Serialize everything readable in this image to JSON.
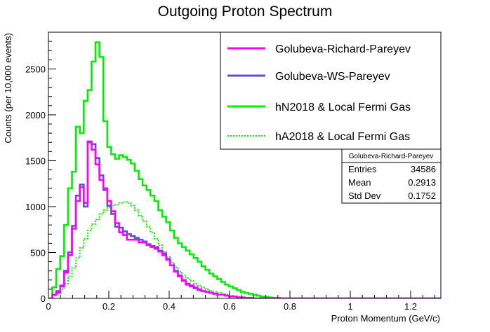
{
  "chart_data": {
    "type": "histogram-step",
    "title": "Outgoing Proton Spectrum",
    "xlabel": "Proton Momentum (GeV/c)",
    "ylabel": "Counts (per 10,000 events)",
    "xlim": [
      0,
      1.3
    ],
    "ylim": [
      0,
      2900
    ],
    "x_ticks": [
      0,
      0.2,
      0.4,
      0.6,
      0.8,
      1,
      1.2
    ],
    "x_tick_labels": [
      "0",
      "0.2",
      "0.4",
      "0.6",
      "0.8",
      "1",
      "1.2"
    ],
    "y_ticks": [
      0,
      500,
      1000,
      1500,
      2000,
      2500
    ],
    "y_tick_labels": [
      "0",
      "500",
      "1000",
      "1500",
      "2000",
      "2500"
    ],
    "bin_width": 0.013,
    "legend_position": "top-right",
    "series": [
      {
        "name": "Golubeva-Richard-Pareyev",
        "color": "#ff00ff",
        "style": "solid",
        "values": [
          0,
          40,
          60,
          140,
          280,
          470,
          760,
          1060,
          1210,
          1040,
          1700,
          1620,
          1460,
          1290,
          1200,
          1060,
          950,
          820,
          720,
          690,
          640,
          640,
          640,
          610,
          610,
          580,
          560,
          540,
          510,
          470,
          420,
          360,
          290,
          240,
          190,
          150,
          140,
          120,
          100,
          80,
          70,
          60,
          50,
          40,
          40,
          30,
          20,
          20,
          10,
          10,
          5,
          5,
          0,
          0,
          0,
          0,
          0,
          0,
          0,
          0,
          0,
          0,
          0,
          0,
          0,
          0,
          0,
          0,
          0,
          0,
          0,
          0,
          0,
          0,
          0,
          0,
          0,
          0,
          0,
          0,
          0,
          0,
          0,
          0,
          0,
          0,
          0,
          0,
          0,
          0,
          0,
          0,
          0,
          0,
          0,
          0,
          0,
          0,
          0,
          0
        ]
      },
      {
        "name": "Golubeva-WS-Pareyev",
        "color": "#5b4fd6",
        "style": "solid",
        "values": [
          0,
          40,
          80,
          130,
          300,
          500,
          790,
          1120,
          1240,
          1000,
          1710,
          1680,
          1530,
          1340,
          1180,
          1010,
          920,
          780,
          770,
          730,
          700,
          680,
          660,
          640,
          620,
          590,
          570,
          560,
          520,
          490,
          430,
          360,
          300,
          250,
          200,
          160,
          130,
          110,
          90,
          80,
          70,
          60,
          50,
          40,
          40,
          30,
          20,
          20,
          10,
          10,
          5,
          5,
          0,
          0,
          0,
          0,
          0,
          0,
          0,
          0,
          0,
          0,
          0,
          0,
          0,
          0,
          0,
          0,
          0,
          0,
          0,
          0,
          0,
          0,
          0,
          0,
          0,
          0,
          0,
          0,
          0,
          0,
          0,
          0,
          0,
          0,
          0,
          0,
          0,
          0,
          0,
          0,
          0,
          0,
          0,
          0,
          0,
          0,
          0,
          0
        ]
      },
      {
        "name": "hN2018 & Local Fermi Gas",
        "color": "#00ee00",
        "style": "solid",
        "values": [
          0,
          120,
          320,
          460,
          800,
          1200,
          1380,
          1870,
          1800,
          2150,
          2270,
          2580,
          2790,
          2630,
          1930,
          1650,
          1570,
          1520,
          1560,
          1540,
          1510,
          1470,
          1390,
          1300,
          1230,
          1180,
          1120,
          1060,
          960,
          890,
          830,
          740,
          660,
          600,
          560,
          520,
          480,
          440,
          400,
          350,
          310,
          270,
          240,
          210,
          180,
          150,
          130,
          110,
          90,
          70,
          60,
          50,
          40,
          30,
          20,
          15,
          10,
          5,
          5,
          0,
          0,
          0,
          0,
          0,
          0,
          0,
          0,
          0,
          0,
          0,
          0,
          0,
          0,
          0,
          0,
          0,
          0,
          0,
          0,
          0,
          0,
          0,
          0,
          0,
          0,
          0,
          0,
          0,
          0,
          0,
          0,
          0,
          0,
          0,
          0,
          0,
          0,
          0,
          0,
          0
        ]
      },
      {
        "name": "hA2018 & Local Fermi Gas",
        "color": "#00ee00",
        "style": "dotted",
        "values": [
          0,
          30,
          60,
          100,
          160,
          240,
          330,
          440,
          550,
          650,
          740,
          810,
          860,
          920,
          960,
          990,
          1010,
          1020,
          1040,
          1050,
          1040,
          1010,
          960,
          900,
          840,
          780,
          720,
          650,
          580,
          510,
          450,
          390,
          340,
          290,
          250,
          220,
          190,
          160,
          140,
          120,
          100,
          80,
          70,
          60,
          50,
          40,
          30,
          20,
          15,
          10,
          5,
          5,
          0,
          0,
          0,
          0,
          0,
          0,
          0,
          0,
          0,
          0,
          0,
          0,
          0,
          0,
          0,
          0,
          0,
          0,
          0,
          0,
          0,
          0,
          0,
          0,
          0,
          0,
          0,
          0,
          0,
          0,
          0,
          0,
          0,
          0,
          0,
          0,
          0,
          0,
          0,
          0,
          0,
          0,
          0,
          0,
          0,
          0,
          0,
          0
        ]
      }
    ],
    "stats_box": {
      "title": "Golubeva-Richard-Pareyev",
      "rows": [
        {
          "label": "Entries",
          "value": "34586"
        },
        {
          "label": "Mean",
          "value": "0.2913"
        },
        {
          "label": "Std Dev",
          "value": "0.1752"
        }
      ]
    }
  }
}
